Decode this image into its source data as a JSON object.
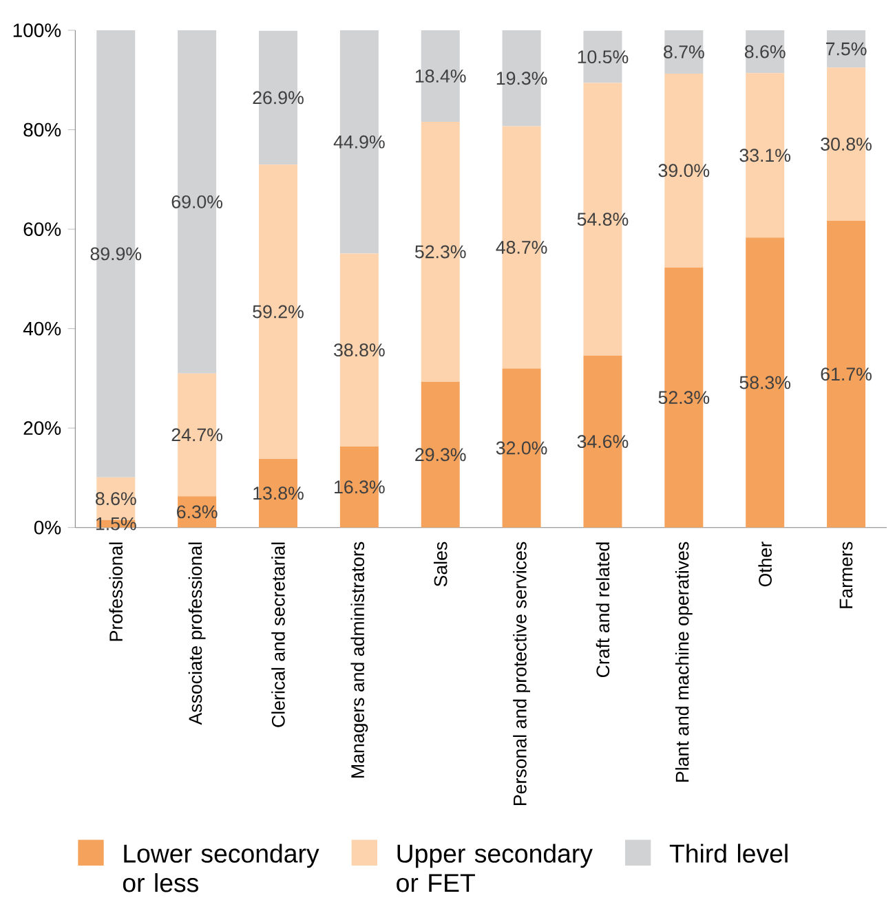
{
  "chart_data": {
    "type": "bar",
    "stacked": true,
    "categories": [
      "Professional",
      "Associate professional",
      "Clerical and secretarial",
      "Managers and administrators",
      "Sales",
      "Personal and protective services",
      "Craft and related",
      "Plant and machine operatives",
      "Other",
      "Farmers"
    ],
    "series": [
      {
        "name": "Lower secondary or less",
        "color": "#f5a35c",
        "values": [
          1.5,
          6.3,
          13.8,
          16.3,
          29.3,
          32.0,
          34.6,
          52.3,
          58.3,
          61.7
        ],
        "value_labels": [
          "1.5%",
          "6.3%",
          "13.8%",
          "16.3%",
          "29.3%",
          "32.0%",
          "34.6%",
          "52.3%",
          "58.3%",
          "61.7%"
        ]
      },
      {
        "name": "Upper secondary or FET",
        "color": "#fdd3ad",
        "values": [
          8.6,
          24.7,
          59.2,
          38.8,
          52.3,
          48.7,
          54.8,
          39.0,
          33.1,
          30.8
        ],
        "value_labels": [
          "8.6%",
          "24.7%",
          "59.2%",
          "38.8%",
          "52.3%",
          "48.7%",
          "54.8%",
          "39.0%",
          "33.1%",
          "30.8%"
        ]
      },
      {
        "name": "Third level",
        "color": "#d1d2d4",
        "values": [
          89.9,
          69.0,
          26.9,
          44.9,
          18.4,
          19.3,
          10.5,
          8.7,
          8.6,
          7.5
        ],
        "value_labels": [
          "89.9%",
          "69.0%",
          "26.9%",
          "44.9%",
          "18.4%",
          "19.3%",
          "10.5%",
          "8.7%",
          "8.6%",
          "7.5%"
        ]
      }
    ],
    "ylim": [
      0,
      100
    ],
    "yticks": [
      {
        "value": 0,
        "label": "0%"
      },
      {
        "value": 20,
        "label": "20%"
      },
      {
        "value": 40,
        "label": "40%"
      },
      {
        "value": 60,
        "label": "60%"
      },
      {
        "value": 80,
        "label": "80%"
      },
      {
        "value": 100,
        "label": "100%"
      }
    ],
    "legend": "bottom"
  }
}
